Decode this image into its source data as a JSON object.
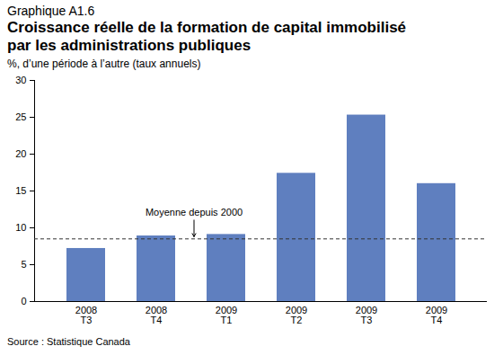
{
  "chart_data": {
    "type": "bar",
    "figure_label": "Graphique A1.6",
    "title": "Croissance réelle de la formation de capital immobilisé\npar les administrations publiques",
    "subtitle": "%, d’une période à l’autre (taux annuels)",
    "source": "Source : Statistique Canada",
    "categories": [
      "2008\nT3",
      "2008\nT4",
      "2009\nT1",
      "2009\nT2",
      "2009\nT3",
      "2009\nT4"
    ],
    "values": [
      7.2,
      8.9,
      9.1,
      17.4,
      25.3,
      16.0
    ],
    "color": "#5f7fbf",
    "ylim": [
      0,
      30
    ],
    "yticks": [
      0,
      5,
      10,
      15,
      20,
      25,
      30
    ],
    "grid": false,
    "reference_line": {
      "label": "Moyenne depuis 2000",
      "value": 8.5
    }
  }
}
